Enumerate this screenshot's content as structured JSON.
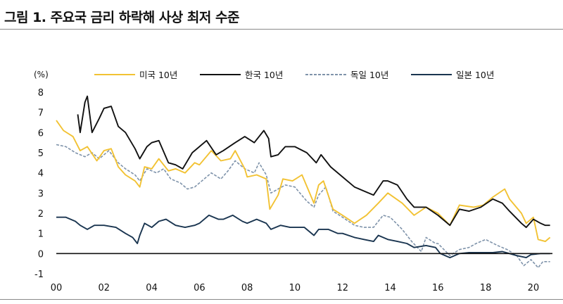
{
  "title": "그림 1. 주요국 금리 하락해 사상 최저 수준",
  "chart_data": {
    "type": "line",
    "ylabel": "(%)",
    "ylim": [
      -1,
      8
    ],
    "xlim": [
      2000,
      2020.8
    ],
    "yticks": [
      "-1",
      "0",
      "1",
      "2",
      "3",
      "4",
      "5",
      "6",
      "7",
      "8"
    ],
    "xticks": [
      "00",
      "02",
      "04",
      "06",
      "08",
      "10",
      "12",
      "14",
      "16",
      "18",
      "20"
    ],
    "grid": false,
    "legend_position": "top",
    "series": [
      {
        "name": "미국 10년",
        "color": "#f2c233",
        "dash": "none",
        "points": [
          [
            2000.0,
            6.6
          ],
          [
            2000.3,
            6.1
          ],
          [
            2000.7,
            5.8
          ],
          [
            2001.0,
            5.1
          ],
          [
            2001.3,
            5.3
          ],
          [
            2001.7,
            4.6
          ],
          [
            2002.0,
            5.1
          ],
          [
            2002.3,
            5.2
          ],
          [
            2002.6,
            4.3
          ],
          [
            2002.9,
            3.9
          ],
          [
            2003.3,
            3.6
          ],
          [
            2003.5,
            3.3
          ],
          [
            2003.7,
            4.3
          ],
          [
            2004.0,
            4.2
          ],
          [
            2004.3,
            4.7
          ],
          [
            2004.7,
            4.1
          ],
          [
            2005.0,
            4.2
          ],
          [
            2005.4,
            4.0
          ],
          [
            2005.8,
            4.5
          ],
          [
            2006.0,
            4.4
          ],
          [
            2006.5,
            5.1
          ],
          [
            2006.9,
            4.6
          ],
          [
            2007.3,
            4.7
          ],
          [
            2007.5,
            5.1
          ],
          [
            2007.9,
            4.2
          ],
          [
            2008.0,
            3.8
          ],
          [
            2008.4,
            3.9
          ],
          [
            2008.8,
            3.7
          ],
          [
            2008.95,
            2.2
          ],
          [
            2009.3,
            2.9
          ],
          [
            2009.5,
            3.7
          ],
          [
            2009.9,
            3.6
          ],
          [
            2010.3,
            3.9
          ],
          [
            2010.8,
            2.5
          ],
          [
            2011.0,
            3.4
          ],
          [
            2011.2,
            3.6
          ],
          [
            2011.6,
            2.2
          ],
          [
            2012.0,
            1.9
          ],
          [
            2012.5,
            1.5
          ],
          [
            2013.0,
            1.9
          ],
          [
            2013.5,
            2.5
          ],
          [
            2013.9,
            3.0
          ],
          [
            2014.5,
            2.5
          ],
          [
            2015.0,
            1.9
          ],
          [
            2015.5,
            2.3
          ],
          [
            2016.0,
            2.0
          ],
          [
            2016.5,
            1.4
          ],
          [
            2016.9,
            2.4
          ],
          [
            2017.5,
            2.3
          ],
          [
            2017.9,
            2.4
          ],
          [
            2018.3,
            2.8
          ],
          [
            2018.8,
            3.2
          ],
          [
            2019.0,
            2.7
          ],
          [
            2019.5,
            2.0
          ],
          [
            2019.7,
            1.5
          ],
          [
            2020.0,
            1.8
          ],
          [
            2020.2,
            0.7
          ],
          [
            2020.5,
            0.6
          ],
          [
            2020.7,
            0.8
          ]
        ]
      },
      {
        "name": "한국 10년",
        "color": "#111111",
        "dash": "none",
        "points": [
          [
            2000.9,
            6.9
          ],
          [
            2001.0,
            6.0
          ],
          [
            2001.2,
            7.5
          ],
          [
            2001.3,
            7.8
          ],
          [
            2001.5,
            6.0
          ],
          [
            2001.8,
            6.7
          ],
          [
            2002.0,
            7.2
          ],
          [
            2002.3,
            7.3
          ],
          [
            2002.6,
            6.3
          ],
          [
            2002.9,
            6.0
          ],
          [
            2003.3,
            5.2
          ],
          [
            2003.5,
            4.7
          ],
          [
            2003.8,
            5.3
          ],
          [
            2004.0,
            5.5
          ],
          [
            2004.3,
            5.6
          ],
          [
            2004.7,
            4.5
          ],
          [
            2005.0,
            4.4
          ],
          [
            2005.3,
            4.2
          ],
          [
            2005.7,
            5.0
          ],
          [
            2006.0,
            5.3
          ],
          [
            2006.3,
            5.6
          ],
          [
            2006.7,
            4.9
          ],
          [
            2007.0,
            5.1
          ],
          [
            2007.5,
            5.5
          ],
          [
            2007.9,
            5.8
          ],
          [
            2008.3,
            5.5
          ],
          [
            2008.7,
            6.1
          ],
          [
            2008.9,
            5.7
          ],
          [
            2009.0,
            4.8
          ],
          [
            2009.3,
            4.9
          ],
          [
            2009.6,
            5.3
          ],
          [
            2010.0,
            5.3
          ],
          [
            2010.5,
            5.0
          ],
          [
            2010.9,
            4.5
          ],
          [
            2011.1,
            4.9
          ],
          [
            2011.5,
            4.3
          ],
          [
            2012.0,
            3.8
          ],
          [
            2012.5,
            3.3
          ],
          [
            2012.9,
            3.1
          ],
          [
            2013.3,
            2.9
          ],
          [
            2013.7,
            3.6
          ],
          [
            2013.9,
            3.6
          ],
          [
            2014.3,
            3.4
          ],
          [
            2014.7,
            2.7
          ],
          [
            2015.0,
            2.3
          ],
          [
            2015.5,
            2.3
          ],
          [
            2016.0,
            1.9
          ],
          [
            2016.5,
            1.4
          ],
          [
            2016.9,
            2.2
          ],
          [
            2017.3,
            2.1
          ],
          [
            2017.8,
            2.3
          ],
          [
            2018.3,
            2.7
          ],
          [
            2018.7,
            2.5
          ],
          [
            2019.0,
            2.1
          ],
          [
            2019.5,
            1.5
          ],
          [
            2019.7,
            1.3
          ],
          [
            2020.0,
            1.7
          ],
          [
            2020.3,
            1.5
          ],
          [
            2020.5,
            1.4
          ],
          [
            2020.7,
            1.4
          ]
        ]
      },
      {
        "name": "독일 10년",
        "color": "#7f93aa",
        "dash": "4 2",
        "points": [
          [
            2000.0,
            5.4
          ],
          [
            2000.4,
            5.3
          ],
          [
            2000.8,
            5.0
          ],
          [
            2001.2,
            4.8
          ],
          [
            2001.5,
            5.0
          ],
          [
            2001.8,
            4.7
          ],
          [
            2002.2,
            5.1
          ],
          [
            2002.6,
            4.5
          ],
          [
            2002.9,
            4.2
          ],
          [
            2003.3,
            3.9
          ],
          [
            2003.5,
            3.6
          ],
          [
            2003.8,
            4.2
          ],
          [
            2004.2,
            4.0
          ],
          [
            2004.5,
            4.2
          ],
          [
            2004.8,
            3.7
          ],
          [
            2005.2,
            3.5
          ],
          [
            2005.5,
            3.2
          ],
          [
            2005.8,
            3.3
          ],
          [
            2006.0,
            3.5
          ],
          [
            2006.5,
            4.0
          ],
          [
            2006.9,
            3.7
          ],
          [
            2007.2,
            4.1
          ],
          [
            2007.5,
            4.6
          ],
          [
            2007.9,
            4.2
          ],
          [
            2008.3,
            4.0
          ],
          [
            2008.5,
            4.5
          ],
          [
            2008.8,
            3.9
          ],
          [
            2009.0,
            3.0
          ],
          [
            2009.3,
            3.2
          ],
          [
            2009.6,
            3.4
          ],
          [
            2010.0,
            3.3
          ],
          [
            2010.5,
            2.6
          ],
          [
            2010.8,
            2.3
          ],
          [
            2011.0,
            2.9
          ],
          [
            2011.3,
            3.3
          ],
          [
            2011.6,
            2.1
          ],
          [
            2012.0,
            1.8
          ],
          [
            2012.5,
            1.4
          ],
          [
            2012.9,
            1.3
          ],
          [
            2013.3,
            1.3
          ],
          [
            2013.7,
            1.9
          ],
          [
            2014.0,
            1.8
          ],
          [
            2014.5,
            1.2
          ],
          [
            2014.9,
            0.6
          ],
          [
            2015.3,
            0.1
          ],
          [
            2015.5,
            0.8
          ],
          [
            2015.9,
            0.5
          ],
          [
            2016.0,
            0.5
          ],
          [
            2016.5,
            -0.1
          ],
          [
            2016.9,
            0.2
          ],
          [
            2017.3,
            0.3
          ],
          [
            2017.6,
            0.5
          ],
          [
            2018.0,
            0.7
          ],
          [
            2018.5,
            0.4
          ],
          [
            2018.9,
            0.2
          ],
          [
            2019.3,
            -0.1
          ],
          [
            2019.6,
            -0.6
          ],
          [
            2019.9,
            -0.3
          ],
          [
            2020.2,
            -0.7
          ],
          [
            2020.4,
            -0.4
          ],
          [
            2020.7,
            -0.4
          ]
        ]
      },
      {
        "name": "일본 10년",
        "color": "#1a3550",
        "dash": "none",
        "points": [
          [
            2000.0,
            1.8
          ],
          [
            2000.4,
            1.8
          ],
          [
            2000.8,
            1.6
          ],
          [
            2001.0,
            1.4
          ],
          [
            2001.3,
            1.2
          ],
          [
            2001.6,
            1.4
          ],
          [
            2002.0,
            1.4
          ],
          [
            2002.5,
            1.3
          ],
          [
            2002.9,
            1.0
          ],
          [
            2003.2,
            0.8
          ],
          [
            2003.4,
            0.5
          ],
          [
            2003.5,
            0.9
          ],
          [
            2003.7,
            1.5
          ],
          [
            2004.0,
            1.3
          ],
          [
            2004.3,
            1.6
          ],
          [
            2004.6,
            1.7
          ],
          [
            2005.0,
            1.4
          ],
          [
            2005.4,
            1.3
          ],
          [
            2005.8,
            1.4
          ],
          [
            2006.0,
            1.5
          ],
          [
            2006.4,
            1.9
          ],
          [
            2006.8,
            1.7
          ],
          [
            2007.0,
            1.7
          ],
          [
            2007.4,
            1.9
          ],
          [
            2007.8,
            1.6
          ],
          [
            2008.0,
            1.5
          ],
          [
            2008.4,
            1.7
          ],
          [
            2008.8,
            1.5
          ],
          [
            2009.0,
            1.2
          ],
          [
            2009.4,
            1.4
          ],
          [
            2009.8,
            1.3
          ],
          [
            2010.0,
            1.3
          ],
          [
            2010.4,
            1.3
          ],
          [
            2010.8,
            0.9
          ],
          [
            2011.0,
            1.2
          ],
          [
            2011.4,
            1.2
          ],
          [
            2011.8,
            1.0
          ],
          [
            2012.0,
            1.0
          ],
          [
            2012.5,
            0.8
          ],
          [
            2012.9,
            0.7
          ],
          [
            2013.3,
            0.6
          ],
          [
            2013.5,
            0.9
          ],
          [
            2013.9,
            0.7
          ],
          [
            2014.3,
            0.6
          ],
          [
            2014.7,
            0.5
          ],
          [
            2015.0,
            0.3
          ],
          [
            2015.5,
            0.4
          ],
          [
            2015.9,
            0.3
          ],
          [
            2016.1,
            0.0
          ],
          [
            2016.5,
            -0.2
          ],
          [
            2016.9,
            0.0
          ],
          [
            2017.3,
            0.05
          ],
          [
            2017.8,
            0.05
          ],
          [
            2018.3,
            0.05
          ],
          [
            2018.7,
            0.1
          ],
          [
            2019.0,
            0.0
          ],
          [
            2019.3,
            -0.1
          ],
          [
            2019.7,
            -0.2
          ],
          [
            2019.9,
            -0.05
          ],
          [
            2020.3,
            0.0
          ],
          [
            2020.7,
            0.0
          ]
        ]
      }
    ]
  }
}
